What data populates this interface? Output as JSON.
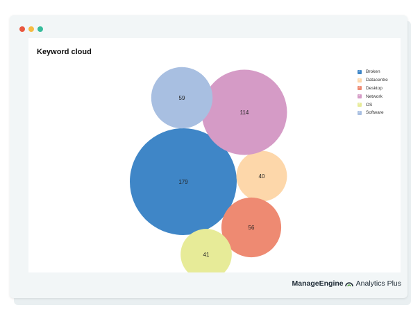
{
  "window": {
    "controls": [
      {
        "name": "close",
        "color": "#e9573f"
      },
      {
        "name": "minimize",
        "color": "#f6bb42"
      },
      {
        "name": "maximize",
        "color": "#37bc9b"
      }
    ]
  },
  "brand": {
    "name_bold": "ManageEngine",
    "name_regular": "Analytics Plus",
    "logo_icon": "manageengine-arc-icon"
  },
  "chart_data": {
    "type": "bubble",
    "title": "Keyword cloud",
    "legend_position": "top-right",
    "series": [
      {
        "name": "Broken",
        "value": 179,
        "color": "#3f86c7"
      },
      {
        "name": "Datacentre",
        "value": 40,
        "color": "#fdd7aa"
      },
      {
        "name": "Desktop",
        "value": 56,
        "color": "#ee8a72"
      },
      {
        "name": "Network",
        "value": 114,
        "color": "#d59bc6"
      },
      {
        "name": "OS",
        "value": 41,
        "color": "#e7eb98"
      },
      {
        "name": "Software",
        "value": 59,
        "color": "#a8bfe1"
      }
    ]
  }
}
